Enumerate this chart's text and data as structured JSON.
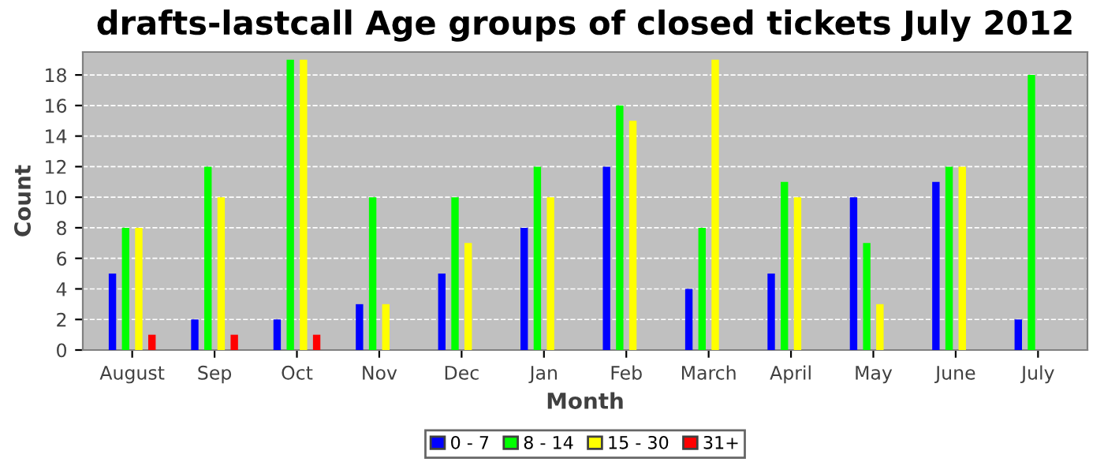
{
  "chart_data": {
    "type": "bar",
    "title": "drafts-lastcall Age groups of closed tickets July 2012",
    "xlabel": "Month",
    "ylabel": "Count",
    "categories": [
      "August",
      "Sep",
      "Oct",
      "Nov",
      "Dec",
      "Jan",
      "Feb",
      "March",
      "April",
      "May",
      "June",
      "July"
    ],
    "series": [
      {
        "name": "0 - 7",
        "color": "#0000ff",
        "values": [
          5,
          2,
          2,
          3,
          5,
          8,
          12,
          4,
          5,
          10,
          11,
          2
        ]
      },
      {
        "name": "8 - 14",
        "color": "#00ff00",
        "values": [
          8,
          12,
          19,
          10,
          10,
          12,
          16,
          8,
          11,
          7,
          12,
          18
        ]
      },
      {
        "name": "15 - 30",
        "color": "#ffff00",
        "values": [
          8,
          10,
          19,
          3,
          7,
          10,
          15,
          19,
          10,
          3,
          12,
          null
        ]
      },
      {
        "name": "31+",
        "color": "#ff0000",
        "values": [
          1,
          1,
          1,
          null,
          null,
          null,
          null,
          null,
          null,
          null,
          null,
          null
        ]
      }
    ],
    "ylim": [
      0,
      19.5
    ],
    "yticks": [
      0,
      2,
      4,
      6,
      8,
      10,
      12,
      14,
      16,
      18
    ],
    "grid": "y",
    "legend": "bottom"
  }
}
